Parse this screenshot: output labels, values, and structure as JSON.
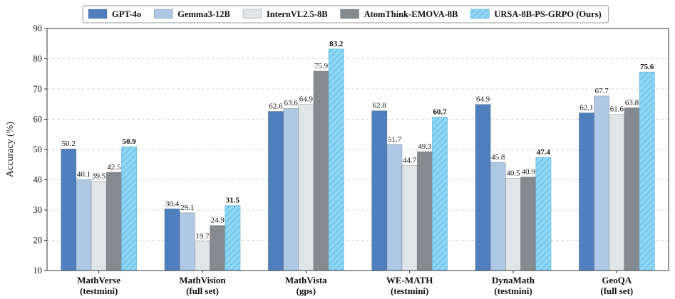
{
  "chart_data": {
    "type": "bar",
    "ylabel": "Accuracy (%)",
    "ylim": [
      10,
      90
    ],
    "yticks": [
      10,
      20,
      30,
      40,
      50,
      60,
      70,
      80,
      90
    ],
    "grid": true,
    "legend_position": "top",
    "categories": [
      [
        "MathVerse",
        "(testmini)"
      ],
      [
        "MathVision",
        "(full set)"
      ],
      [
        "MathVista",
        "(gps)"
      ],
      [
        "WE-MATH",
        "(testmini)"
      ],
      [
        "DynaMath",
        "(testmini)"
      ],
      [
        "GeoQA",
        "(full set)"
      ]
    ],
    "series": [
      {
        "name": "GPT-4o",
        "color": "#4f7fbf",
        "hatch": false,
        "bold_labels": false,
        "values": [
          50.2,
          30.4,
          62.6,
          62.8,
          64.9,
          62.1
        ]
      },
      {
        "name": "Gemma3-12B",
        "color": "#aec8e6",
        "hatch": false,
        "bold_labels": false,
        "values": [
          40.1,
          29.1,
          63.6,
          51.7,
          45.8,
          67.7
        ]
      },
      {
        "name": "InternVL2.5-8B",
        "color": "#e1e5e8",
        "hatch": false,
        "bold_labels": false,
        "values": [
          39.5,
          19.7,
          64.9,
          44.7,
          40.5,
          61.6
        ]
      },
      {
        "name": "AtomThink-EMOVA-8B",
        "color": "#858a8e",
        "hatch": false,
        "bold_labels": false,
        "values": [
          42.5,
          24.9,
          75.9,
          49.3,
          40.9,
          63.8
        ]
      },
      {
        "name": "URSA-8B-PS-GRPO (Ours)",
        "color": "#8fd6f5",
        "hatch": true,
        "bold_labels": true,
        "values": [
          50.9,
          31.5,
          83.2,
          60.7,
          47.4,
          75.6
        ]
      }
    ]
  }
}
